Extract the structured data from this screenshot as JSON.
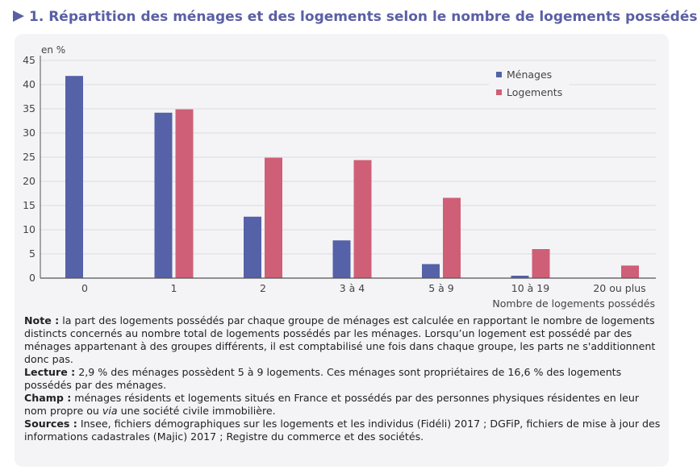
{
  "title": "1. Répartition des ménages et des logements selon le nombre de logements possédés",
  "colors": {
    "title": "#5a5fa5",
    "menages": "#5562a8",
    "logements": "#cf5f77",
    "panel": "#f4f4f7"
  },
  "chart_data": {
    "type": "bar",
    "ylabel": "en %",
    "xlabel": "Nombre de logements possédés",
    "ylim": [
      0,
      45
    ],
    "yticks": [
      0,
      5,
      10,
      15,
      20,
      25,
      30,
      35,
      40,
      45
    ],
    "grid": true,
    "legend_position": "top-right",
    "categories": [
      "0",
      "1",
      "2",
      "3 à 4",
      "5 à 9",
      "10 à 19",
      "20 ou plus"
    ],
    "series": [
      {
        "name": "Ménages",
        "values": [
          41.8,
          34.2,
          12.7,
          7.8,
          2.9,
          0.5,
          0.1
        ]
      },
      {
        "name": "Logements",
        "values": [
          0,
          34.9,
          24.9,
          24.4,
          16.6,
          6.0,
          2.6
        ]
      }
    ]
  },
  "notes": {
    "note_label": "Note :",
    "note_text": " la part des logements possédés par chaque groupe de ménages est calculée en rapportant le nombre de logements distincts concernés au nombre total de logements possédés par les ménages. Lorsqu’un logement est possédé par des ménages appartenant à des groupes différents, il est comptabilisé une fois dans chaque groupe, les parts ne s'additionnent donc pas.",
    "lecture_label": "Lecture :",
    "lecture_text": " 2,9 % des ménages possèdent 5 à 9 logements. Ces ménages sont propriétaires de 16,6 % des logements possédés par des ménages.",
    "champ_label": "Champ :",
    "champ_text_1": " ménages résidents et logements situés en France et possédés par des personnes physiques résidentes en leur nom propre ou ",
    "champ_via": "via",
    "champ_text_2": " une société civile immobilière.",
    "sources_label": "Sources :",
    "sources_text": " Insee, fichiers démographiques sur les logements et les individus (Fidéli) 2017 ; DGFiP, fichiers de mise à jour des informations cadastrales (Majic) 2017 ; Registre du commerce et des sociétés."
  }
}
